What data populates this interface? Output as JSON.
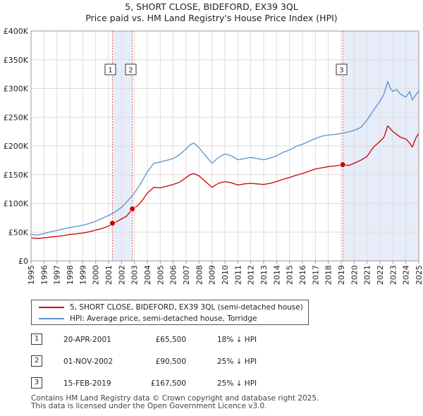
{
  "chart_data": {
    "type": "line",
    "title_lines": [
      "5, SHORT CLOSE, BIDEFORD, EX39 3QL",
      "Price paid vs. HM Land Registry's House Price Index (HPI)"
    ],
    "ylim": [
      0,
      400000
    ],
    "xlim": [
      1995,
      2025
    ],
    "y_ticks": [
      {
        "value": 0,
        "label": "£0"
      },
      {
        "value": 50000,
        "label": "£50K"
      },
      {
        "value": 100000,
        "label": "£100K"
      },
      {
        "value": 150000,
        "label": "£150K"
      },
      {
        "value": 200000,
        "label": "£200K"
      },
      {
        "value": 250000,
        "label": "£250K"
      },
      {
        "value": 300000,
        "label": "£300K"
      },
      {
        "value": 350000,
        "label": "£350K"
      },
      {
        "value": 400000,
        "label": "£400K"
      }
    ],
    "x_ticks": [
      "1995",
      "1996",
      "1997",
      "1998",
      "1999",
      "2000",
      "2001",
      "2002",
      "2003",
      "2004",
      "2005",
      "2006",
      "2007",
      "2008",
      "2009",
      "2010",
      "2011",
      "2012",
      "2013",
      "2014",
      "2015",
      "2016",
      "2017",
      "2018",
      "2019",
      "2020",
      "2021",
      "2022",
      "2023",
      "2024",
      "2025"
    ],
    "series": [
      {
        "name": "5, SHORT CLOSE, BIDEFORD, EX39 3QL (semi-detached house)",
        "color": "#cc0000",
        "points": [
          [
            1995.0,
            40000
          ],
          [
            1995.5,
            39000
          ],
          [
            1996.0,
            40000
          ],
          [
            1996.5,
            41500
          ],
          [
            1997.0,
            42500
          ],
          [
            1997.5,
            44000
          ],
          [
            1998.0,
            46000
          ],
          [
            1998.5,
            47000
          ],
          [
            1999.0,
            48500
          ],
          [
            1999.5,
            50500
          ],
          [
            2000.0,
            53500
          ],
          [
            2000.5,
            56500
          ],
          [
            2001.0,
            60500
          ],
          [
            2001.3,
            65500
          ],
          [
            2001.6,
            68000
          ],
          [
            2002.0,
            73000
          ],
          [
            2002.4,
            78000
          ],
          [
            2002.84,
            90500
          ],
          [
            2003.2,
            95000
          ],
          [
            2003.6,
            105000
          ],
          [
            2004.0,
            118000
          ],
          [
            2004.5,
            128000
          ],
          [
            2005.0,
            127000
          ],
          [
            2005.5,
            130000
          ],
          [
            2006.0,
            133000
          ],
          [
            2006.5,
            137000
          ],
          [
            2007.0,
            145000
          ],
          [
            2007.3,
            150000
          ],
          [
            2007.6,
            152000
          ],
          [
            2008.0,
            148000
          ],
          [
            2008.5,
            138000
          ],
          [
            2009.0,
            128000
          ],
          [
            2009.5,
            135000
          ],
          [
            2010.0,
            138000
          ],
          [
            2010.5,
            136000
          ],
          [
            2011.0,
            132000
          ],
          [
            2011.5,
            134000
          ],
          [
            2012.0,
            135000
          ],
          [
            2012.5,
            134000
          ],
          [
            2013.0,
            133000
          ],
          [
            2013.5,
            135000
          ],
          [
            2014.0,
            138000
          ],
          [
            2014.5,
            142000
          ],
          [
            2015.0,
            145000
          ],
          [
            2015.5,
            149000
          ],
          [
            2016.0,
            152000
          ],
          [
            2016.5,
            156000
          ],
          [
            2017.0,
            160000
          ],
          [
            2017.5,
            162000
          ],
          [
            2018.0,
            164000
          ],
          [
            2018.5,
            165000
          ],
          [
            2019.12,
            167500
          ],
          [
            2019.6,
            166000
          ],
          [
            2020.0,
            170000
          ],
          [
            2020.5,
            175000
          ],
          [
            2021.0,
            182000
          ],
          [
            2021.5,
            198000
          ],
          [
            2022.0,
            208000
          ],
          [
            2022.3,
            215000
          ],
          [
            2022.6,
            235000
          ],
          [
            2022.8,
            230000
          ],
          [
            2023.0,
            225000
          ],
          [
            2023.3,
            220000
          ],
          [
            2023.6,
            215000
          ],
          [
            2024.0,
            212000
          ],
          [
            2024.3,
            205000
          ],
          [
            2024.5,
            198000
          ],
          [
            2024.8,
            215000
          ],
          [
            2025.0,
            222000
          ]
        ]
      },
      {
        "name": "HPI: Average price, semi-detached house, Torridge",
        "color": "#5b8fd0",
        "points": [
          [
            1995.0,
            46000
          ],
          [
            1995.5,
            45000
          ],
          [
            1996.0,
            47500
          ],
          [
            1996.5,
            50500
          ],
          [
            1997.0,
            53000
          ],
          [
            1997.5,
            55500
          ],
          [
            1998.0,
            58000
          ],
          [
            1998.5,
            60000
          ],
          [
            1999.0,
            62000
          ],
          [
            1999.5,
            65000
          ],
          [
            2000.0,
            69000
          ],
          [
            2000.5,
            74000
          ],
          [
            2001.0,
            79000
          ],
          [
            2001.5,
            85000
          ],
          [
            2002.0,
            93000
          ],
          [
            2002.5,
            105000
          ],
          [
            2003.0,
            118000
          ],
          [
            2003.5,
            135000
          ],
          [
            2004.0,
            155000
          ],
          [
            2004.5,
            170000
          ],
          [
            2005.0,
            172000
          ],
          [
            2005.5,
            175000
          ],
          [
            2006.0,
            178000
          ],
          [
            2006.5,
            185000
          ],
          [
            2007.0,
            195000
          ],
          [
            2007.3,
            202000
          ],
          [
            2007.6,
            205000
          ],
          [
            2008.0,
            197000
          ],
          [
            2008.5,
            183000
          ],
          [
            2009.0,
            170000
          ],
          [
            2009.5,
            180000
          ],
          [
            2010.0,
            186000
          ],
          [
            2010.5,
            183000
          ],
          [
            2011.0,
            176000
          ],
          [
            2011.5,
            178000
          ],
          [
            2012.0,
            180000
          ],
          [
            2012.5,
            178000
          ],
          [
            2013.0,
            176000
          ],
          [
            2013.5,
            179000
          ],
          [
            2014.0,
            183000
          ],
          [
            2014.5,
            189000
          ],
          [
            2015.0,
            193000
          ],
          [
            2015.5,
            199000
          ],
          [
            2016.0,
            203000
          ],
          [
            2016.5,
            208000
          ],
          [
            2017.0,
            213000
          ],
          [
            2017.5,
            217000
          ],
          [
            2018.0,
            219000
          ],
          [
            2018.5,
            220000
          ],
          [
            2019.0,
            222000
          ],
          [
            2019.5,
            224000
          ],
          [
            2020.0,
            227000
          ],
          [
            2020.5,
            232000
          ],
          [
            2021.0,
            245000
          ],
          [
            2021.5,
            262000
          ],
          [
            2022.0,
            278000
          ],
          [
            2022.3,
            290000
          ],
          [
            2022.6,
            312000
          ],
          [
            2022.8,
            300000
          ],
          [
            2023.0,
            295000
          ],
          [
            2023.3,
            298000
          ],
          [
            2023.6,
            290000
          ],
          [
            2024.0,
            285000
          ],
          [
            2024.3,
            295000
          ],
          [
            2024.5,
            280000
          ],
          [
            2024.8,
            290000
          ],
          [
            2025.0,
            296000
          ]
        ]
      }
    ],
    "transactions": [
      {
        "id": "1",
        "x": 2001.3,
        "price_value": 65500,
        "date": "20-APR-2001",
        "price": "£65,500",
        "hpi": "18% ↓ HPI"
      },
      {
        "id": "2",
        "x": 2002.84,
        "price_value": 90500,
        "date": "01-NOV-2002",
        "price": "£90,500",
        "hpi": "25% ↓ HPI"
      },
      {
        "id": "3",
        "x": 2019.12,
        "price_value": 167500,
        "date": "15-FEB-2019",
        "price": "£167,500",
        "hpi": "25% ↓ HPI"
      }
    ],
    "shaded_spans": [
      [
        2001.3,
        2002.84
      ],
      [
        2019.12,
        2025.0
      ]
    ]
  },
  "legend": {
    "property": "5, SHORT CLOSE, BIDEFORD, EX39 3QL (semi-detached house)",
    "hpi": "HPI: Average price, semi-detached house, Torridge"
  },
  "footer": {
    "line1": "Contains HM Land Registry data © Crown copyright and database right 2025.",
    "line2": "This data is licensed under the Open Government Licence v3.0."
  },
  "colors": {
    "property": "#cc0000",
    "hpi": "#5b8fd0",
    "shade": "#e6ecf8",
    "vline": "#e06060"
  }
}
